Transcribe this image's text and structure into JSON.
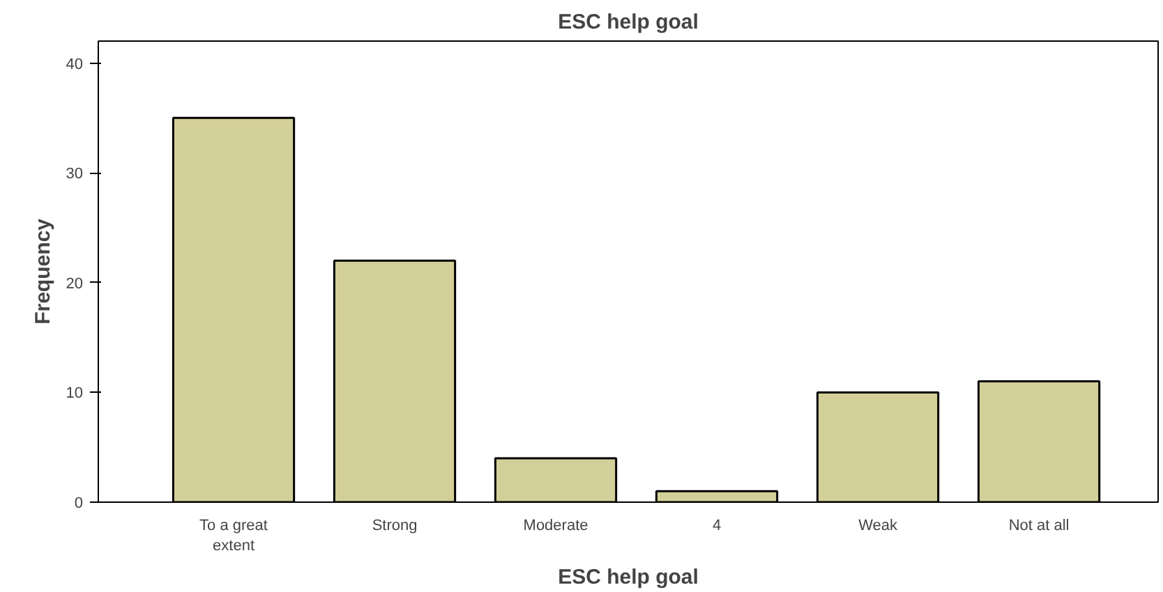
{
  "chart_data": {
    "type": "bar",
    "title": "ESC help goal",
    "xlabel": "ESC help goal",
    "ylabel": "Frequency",
    "categories": [
      "To a great extent",
      "Strong",
      "Moderate",
      "4",
      "Weak",
      "Not at all"
    ],
    "values": [
      35,
      22,
      4,
      1,
      10,
      11
    ],
    "color": "#d3cf98",
    "ylim": [
      0,
      42
    ],
    "yticks": [
      0,
      10,
      20,
      30,
      40
    ],
    "grid": false
  }
}
